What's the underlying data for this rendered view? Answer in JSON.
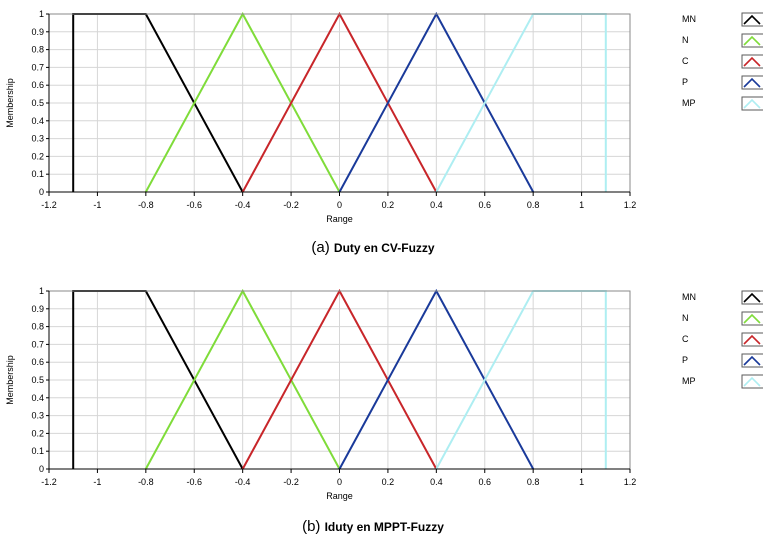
{
  "chart_data": [
    {
      "type": "line",
      "caption_letter": "(a)",
      "caption_title": "Duty en CV-Fuzzy",
      "xlabel": "Range",
      "ylabel": "Membership",
      "xlim": [
        -1.2,
        1.2
      ],
      "ylim": [
        0,
        1
      ],
      "x_ticks": [
        "-1.2",
        "-1",
        "-0.8",
        "-0.6",
        "-0.4",
        "-0.2",
        "0",
        "0.2",
        "0.4",
        "0.6",
        "0.8",
        "1",
        "1.2"
      ],
      "y_ticks": [
        "0",
        "0.1",
        "0.2",
        "0.3",
        "0.4",
        "0.5",
        "0.6",
        "0.7",
        "0.8",
        "0.9",
        "1"
      ],
      "grid": true,
      "legend_position": "right",
      "series": [
        {
          "name": "MN",
          "color": "#000000",
          "x": [
            -1.1,
            -1.1,
            -0.8,
            -0.4
          ],
          "y": [
            0,
            1,
            1,
            0
          ]
        },
        {
          "name": "N",
          "color": "#7fdc3a",
          "x": [
            -0.8,
            -0.4,
            0
          ],
          "y": [
            0,
            1,
            0
          ]
        },
        {
          "name": "C",
          "color": "#c8262a",
          "x": [
            -0.4,
            0,
            0.4
          ],
          "y": [
            0,
            1,
            0
          ]
        },
        {
          "name": "P",
          "color": "#1a3a9a",
          "x": [
            0,
            0.4,
            0.8
          ],
          "y": [
            0,
            1,
            0
          ]
        },
        {
          "name": "MP",
          "color": "#aeeef2",
          "x": [
            0.4,
            0.8,
            1.1,
            1.1
          ],
          "y": [
            0,
            1,
            1,
            0
          ]
        }
      ]
    },
    {
      "type": "line",
      "caption_letter": "(b)",
      "caption_title": "Iduty en MPPT-Fuzzy",
      "xlabel": "Range",
      "ylabel": "Membership",
      "xlim": [
        -1.2,
        1.2
      ],
      "ylim": [
        0,
        1
      ],
      "x_ticks": [
        "-1.2",
        "-1",
        "-0.8",
        "-0.6",
        "-0.4",
        "-0.2",
        "0",
        "0.2",
        "0.4",
        "0.6",
        "0.8",
        "1",
        "1.2"
      ],
      "y_ticks": [
        "0",
        "0.1",
        "0.2",
        "0.3",
        "0.4",
        "0.5",
        "0.6",
        "0.7",
        "0.8",
        "0.9",
        "1"
      ],
      "grid": true,
      "legend_position": "right",
      "series": [
        {
          "name": "MN",
          "color": "#000000",
          "x": [
            -1.1,
            -1.1,
            -0.8,
            -0.4
          ],
          "y": [
            0,
            1,
            1,
            0
          ]
        },
        {
          "name": "N",
          "color": "#7fdc3a",
          "x": [
            -0.8,
            -0.4,
            0
          ],
          "y": [
            0,
            1,
            0
          ]
        },
        {
          "name": "C",
          "color": "#c8262a",
          "x": [
            -0.4,
            0,
            0.4
          ],
          "y": [
            0,
            1,
            0
          ]
        },
        {
          "name": "P",
          "color": "#1a3a9a",
          "x": [
            0,
            0.4,
            0.8
          ],
          "y": [
            0,
            1,
            0
          ]
        },
        {
          "name": "MP",
          "color": "#aeeef2",
          "x": [
            0.4,
            0.8,
            1.1,
            1.1
          ],
          "y": [
            0,
            1,
            1,
            0
          ]
        }
      ]
    }
  ]
}
